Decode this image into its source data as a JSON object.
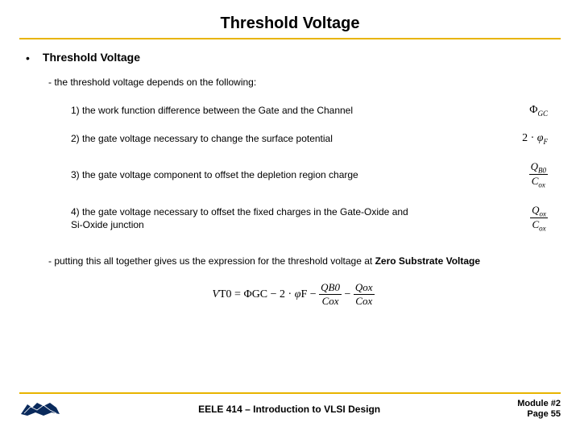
{
  "title": "Threshold Voltage",
  "subheading": "Threshold Voltage",
  "intro": "- the threshold voltage depends on the following:",
  "items": [
    {
      "n": "1)",
      "text": "the work function difference between the Gate and the Channel",
      "formula_html": "&Phi;<span class='sub'>GC</span>"
    },
    {
      "n": "2)",
      "text": "the gate voltage necessary to change the surface potential",
      "formula_html": "2 &middot; <span style='font-style:italic'>&phi;</span><span class='sub'>F</span>"
    },
    {
      "n": "3)",
      "text": "the gate voltage component to offset the depletion region charge",
      "formula_html": "<span class='frac'><span class='num'>Q<span class='sub'>B0</span></span><span class='den'>C<span class='sub'>ox</span></span></span>"
    },
    {
      "n": "4)",
      "text": "the gate voltage necessary to offset the fixed charges in the Gate-Oxide and Si-Oxide junction",
      "formula_html": "<span class='frac'><span class='num'>Q<span class='sub'>ox</span></span><span class='den'>C<span class='sub'>ox</span></span></span>"
    }
  ],
  "conclusion_prefix": "- putting this all together gives us the expression for the threshold voltage at ",
  "conclusion_bold": "Zero Substrate Voltage",
  "equation_html": "<span style='font-style:italic'>V</span><span class='sub'>T0</span> = &Phi;<span class='sub'>GC</span> &minus; 2 &middot; <span style='font-style:italic'>&phi;</span><span class='sub'>F</span> &minus; <span class='frac'><span class='num'>Q<span class='sub'>B0</span></span><span class='den'>C<span class='sub'>ox</span></span></span> &minus; <span class='frac'><span class='num'>Q<span class='sub'>ox</span></span><span class='den'>C<span class='sub'>ox</span></span></span>",
  "footer": {
    "course": "EELE 414 – Introduction to VLSI Design",
    "module": "Module #2",
    "page": "Page 55"
  },
  "colors": {
    "accent": "#e8b400",
    "logo_navy": "#0a2a5c"
  }
}
